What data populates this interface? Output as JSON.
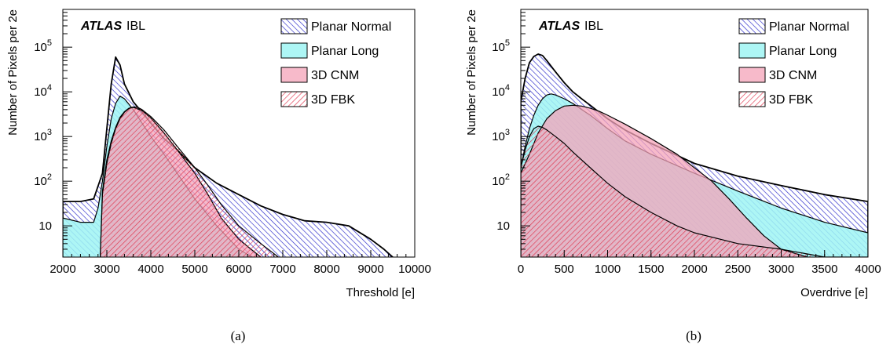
{
  "colors": {
    "planar_normal": "#3b3bd6",
    "planar_long": "#9ff5f3",
    "cnm": "#f4a3b8",
    "fbk": "#e0334b",
    "outline": "#000000"
  },
  "chart_data": [
    {
      "type": "area",
      "panel_label": "(a)",
      "experiment": "ATLAS",
      "detector": "IBL",
      "xlabel": "Threshold [e]",
      "ylabel": "Number of Pixels per 2e",
      "xlim": [
        2000,
        10000
      ],
      "ylim": [
        2,
        700000
      ],
      "yscale": "log",
      "xticks": [
        2000,
        3000,
        4000,
        5000,
        6000,
        7000,
        8000,
        9000,
        10000
      ],
      "yticks": [
        {
          "value": 10,
          "base": "10",
          "exp": ""
        },
        {
          "value": 100,
          "base": "10",
          "exp": "2"
        },
        {
          "value": 1000,
          "base": "10",
          "exp": "3"
        },
        {
          "value": 10000,
          "base": "10",
          "exp": "4"
        },
        {
          "value": 100000,
          "base": "10",
          "exp": "5"
        }
      ],
      "legend_position": "top-right",
      "legend": [
        "Planar Normal",
        "Planar Long",
        "3D CNM",
        "3D FBK"
      ],
      "series": [
        {
          "name": "Planar Normal",
          "x": [
            2000,
            2400,
            2700,
            2900,
            3000,
            3100,
            3200,
            3300,
            3400,
            3600,
            3800,
            4000,
            4300,
            4600,
            5000,
            5500,
            6000,
            6500,
            7000,
            7500,
            8000,
            8500,
            9000,
            9300,
            9500
          ],
          "y": [
            35,
            35,
            40,
            150,
            1500,
            15000,
            60000,
            40000,
            15000,
            6000,
            3500,
            2000,
            900,
            500,
            200,
            90,
            50,
            28,
            18,
            13,
            12,
            10,
            5,
            3,
            2
          ]
        },
        {
          "name": "Planar Long",
          "x": [
            2000,
            2400,
            2700,
            2800,
            2900,
            3000,
            3100,
            3200,
            3300,
            3400,
            3600,
            3800,
            4000,
            4300,
            4600,
            5000,
            5500,
            6000,
            6300
          ],
          "y": [
            15,
            12,
            12,
            25,
            100,
            600,
            2500,
            5500,
            8000,
            7000,
            4000,
            2000,
            1000,
            400,
            150,
            40,
            10,
            3,
            2
          ]
        },
        {
          "name": "3D CNM",
          "x": [
            2850,
            2900,
            3000,
            3100,
            3200,
            3300,
            3400,
            3500,
            3600,
            3800,
            4000,
            4300,
            4600,
            5000,
            5300,
            5600,
            6000,
            6500
          ],
          "y": [
            2,
            50,
            250,
            700,
            1500,
            2500,
            3500,
            4200,
            4500,
            3800,
            2600,
            1200,
            500,
            150,
            50,
            15,
            5,
            2
          ]
        },
        {
          "name": "3D FBK",
          "x": [
            2850,
            2900,
            3000,
            3100,
            3200,
            3300,
            3400,
            3500,
            3600,
            3700,
            3800,
            4000,
            4300,
            4600,
            5000,
            5300,
            5600,
            6000,
            6500,
            6900
          ],
          "y": [
            2,
            60,
            300,
            800,
            1600,
            2700,
            3600,
            4300,
            4600,
            4500,
            4000,
            2800,
            1400,
            600,
            200,
            80,
            30,
            10,
            4,
            2
          ]
        }
      ]
    },
    {
      "type": "area",
      "panel_label": "(b)",
      "experiment": "ATLAS",
      "detector": "IBL",
      "xlabel": "Overdrive [e]",
      "ylabel": "Number of Pixels per 2e",
      "xlim": [
        0,
        4000
      ],
      "ylim": [
        2,
        700000
      ],
      "yscale": "log",
      "xticks": [
        0,
        500,
        1000,
        1500,
        2000,
        2500,
        3000,
        3500,
        4000
      ],
      "yticks": [
        {
          "value": 10,
          "base": "10",
          "exp": ""
        },
        {
          "value": 100,
          "base": "10",
          "exp": "2"
        },
        {
          "value": 1000,
          "base": "10",
          "exp": "3"
        },
        {
          "value": 10000,
          "base": "10",
          "exp": "4"
        },
        {
          "value": 100000,
          "base": "10",
          "exp": "5"
        }
      ],
      "legend_position": "top-right",
      "legend": [
        "Planar Normal",
        "Planar Long",
        "3D CNM",
        "3D FBK"
      ],
      "series": [
        {
          "name": "Planar Normal",
          "x": [
            0,
            50,
            100,
            150,
            200,
            250,
            300,
            400,
            500,
            600,
            700,
            800,
            1000,
            1200,
            1500,
            2000,
            2500,
            3000,
            3500,
            4000
          ],
          "y": [
            6000,
            20000,
            45000,
            62000,
            70000,
            65000,
            50000,
            28000,
            16000,
            10000,
            7000,
            5000,
            2500,
            1400,
            700,
            250,
            130,
            80,
            50,
            35
          ]
        },
        {
          "name": "Planar Long",
          "x": [
            0,
            50,
            100,
            150,
            200,
            250,
            300,
            350,
            400,
            500,
            600,
            700,
            800,
            1000,
            1200,
            1500,
            2000,
            2500,
            3000,
            3500,
            4000
          ],
          "y": [
            200,
            600,
            1500,
            3000,
            5000,
            7000,
            8500,
            9000,
            8500,
            7000,
            5500,
            4000,
            3000,
            1500,
            800,
            400,
            150,
            60,
            25,
            12,
            7
          ]
        },
        {
          "name": "3D CNM",
          "x": [
            0,
            100,
            200,
            300,
            400,
            500,
            600,
            700,
            800,
            900,
            1000,
            1200,
            1500,
            1800,
            2000,
            2200,
            2400,
            2600,
            2800,
            3000,
            3300
          ],
          "y": [
            150,
            400,
            1200,
            2500,
            3800,
            4800,
            5000,
            4800,
            4300,
            3700,
            3000,
            1900,
            900,
            400,
            200,
            100,
            40,
            15,
            6,
            3,
            2
          ]
        },
        {
          "name": "3D FBK",
          "x": [
            0,
            50,
            100,
            150,
            200,
            250,
            300,
            400,
            500,
            600,
            800,
            1000,
            1200,
            1500,
            1800,
            2000,
            2500,
            3000,
            3500,
            4000
          ],
          "y": [
            200,
            500,
            1000,
            1500,
            1700,
            1600,
            1400,
            1000,
            700,
            450,
            200,
            90,
            45,
            20,
            10,
            7,
            4,
            3,
            2,
            2
          ]
        }
      ]
    }
  ]
}
